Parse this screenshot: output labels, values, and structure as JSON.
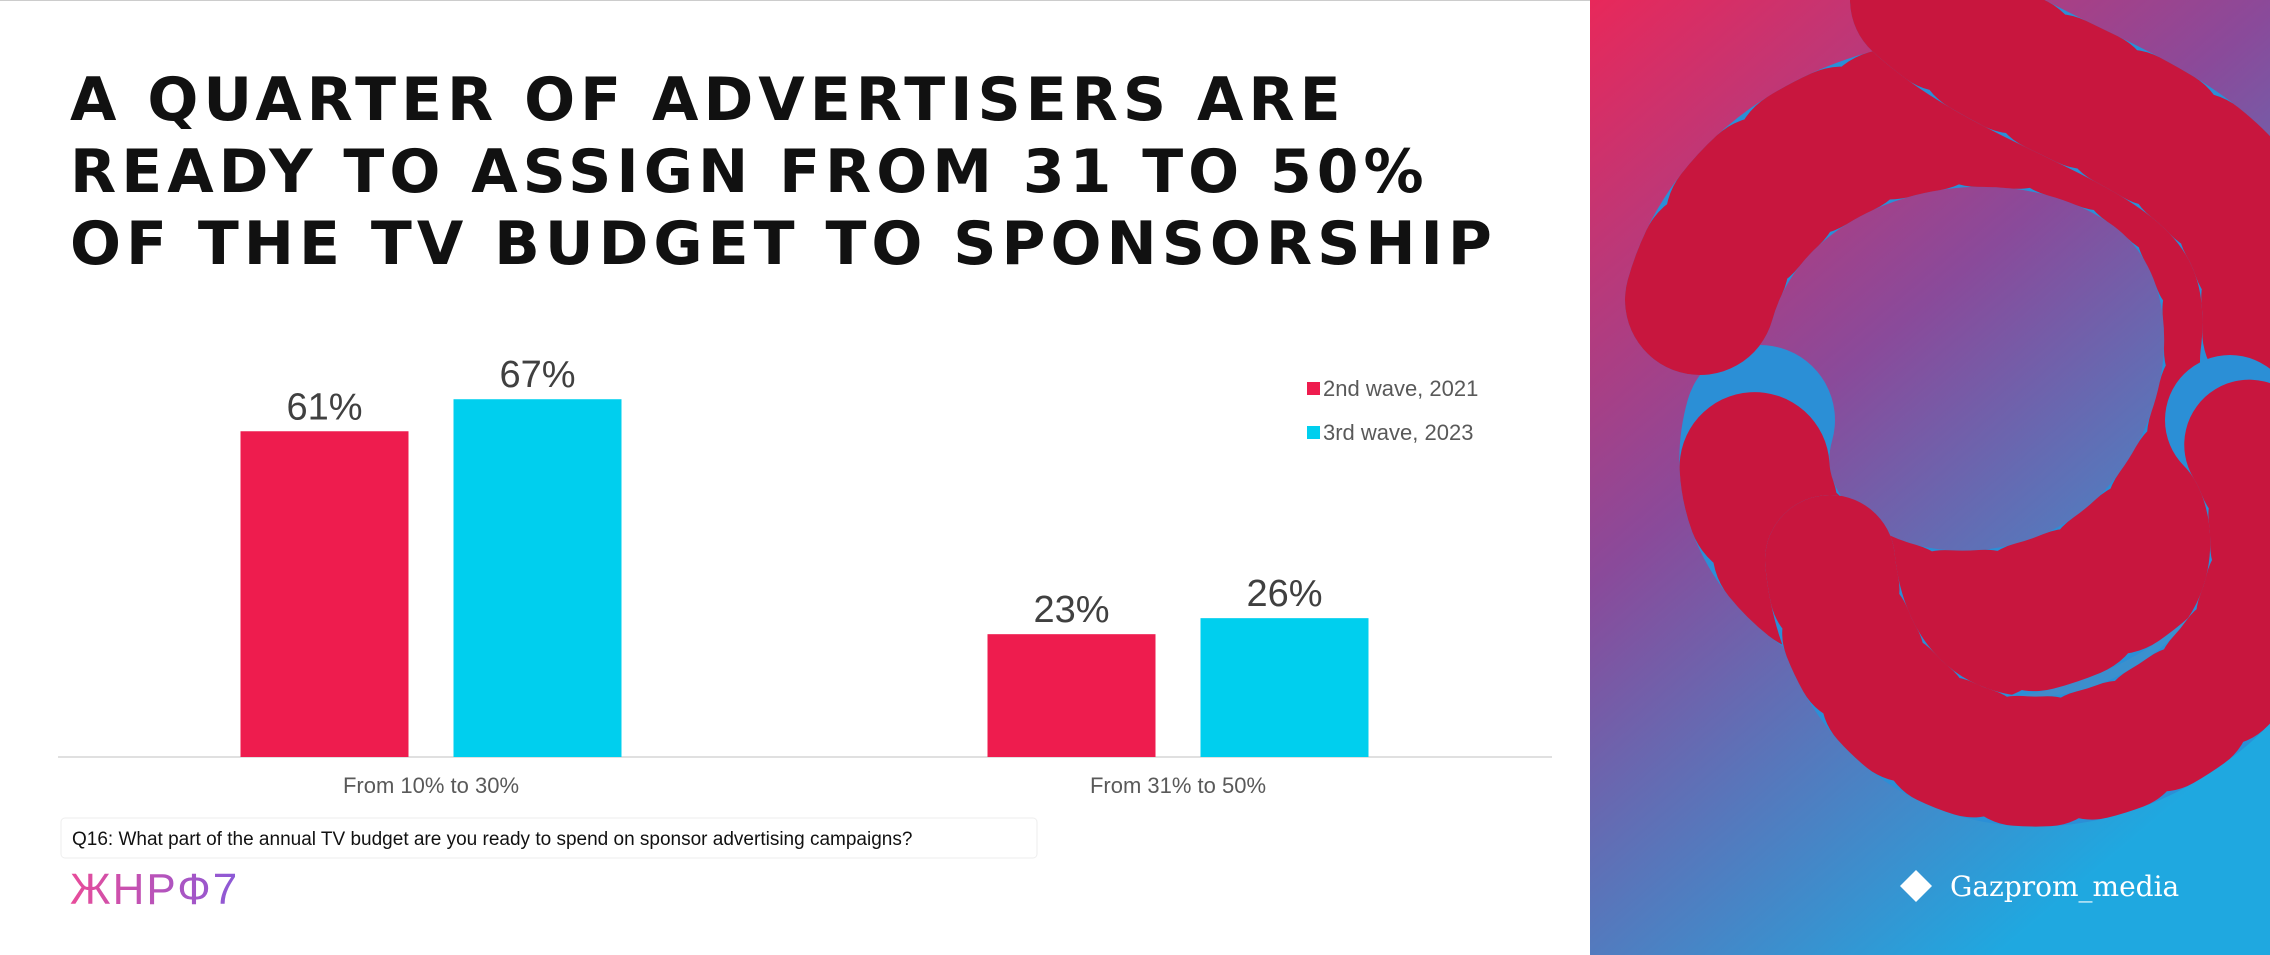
{
  "chart_data": {
    "type": "bar",
    "title": [
      "A QUARTER OF ADVERTISERS ARE",
      "READY TO ASSIGN FROM 31 TO 50%",
      "OF THE TV BUDGET TO SPONSORSHIP"
    ],
    "categories": [
      "From 10% to 30%",
      "From 31% to 50%"
    ],
    "series": [
      {
        "name": "2nd wave, 2021",
        "color": "#ee1c4e",
        "values": [
          61,
          23
        ],
        "value_labels": [
          "61%",
          "23%"
        ]
      },
      {
        "name": "3rd wave, 2023",
        "color": "#00cfee",
        "values": [
          67,
          26
        ],
        "value_labels": [
          "67%",
          "26%"
        ]
      }
    ],
    "legend": "top-right",
    "note": "Q16: What part of the annual TV  budget are you ready to spend on sponsor advertising campaigns?"
  },
  "logo": "ЖНРФ7",
  "brand": "Gazprom_media"
}
